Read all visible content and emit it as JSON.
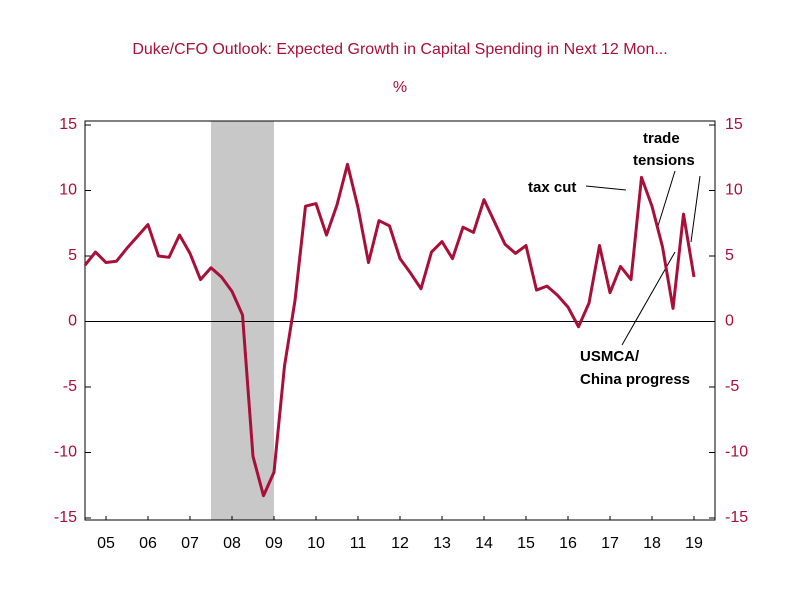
{
  "chart_data": {
    "type": "line",
    "title": "Duke/CFO Outlook: Expected Growth in Capital Spending in Next 12 Mon...",
    "subtitle": "%",
    "x": [
      2005,
      2005.25,
      2005.5,
      2005.75,
      2006,
      2006.25,
      2006.5,
      2006.75,
      2007,
      2007.25,
      2007.5,
      2007.75,
      2008,
      2008.25,
      2008.5,
      2008.75,
      2009,
      2009.25,
      2009.5,
      2009.75,
      2010,
      2010.25,
      2010.5,
      2010.75,
      2011,
      2011.25,
      2011.5,
      2011.75,
      2012,
      2012.25,
      2012.5,
      2012.75,
      2013,
      2013.25,
      2013.5,
      2013.75,
      2014,
      2014.25,
      2014.5,
      2014.75,
      2015,
      2015.25,
      2015.5,
      2015.75,
      2016,
      2016.25,
      2016.5,
      2016.75,
      2017,
      2017.25,
      2017.5,
      2017.75,
      2018,
      2018.25,
      2018.5,
      2018.75,
      2019,
      2019.25,
      2019.5
    ],
    "series": [
      {
        "name": "Expected growth in capital spending",
        "color": "#a8103a",
        "values": [
          4.3,
          5.3,
          4.5,
          4.6,
          5.6,
          6.5,
          7.4,
          5.0,
          4.9,
          6.6,
          5.2,
          3.2,
          4.1,
          3.4,
          2.3,
          0.5,
          -10.3,
          -13.3,
          -11.5,
          -3.4,
          1.6,
          8.8,
          9.0,
          6.6,
          8.9,
          12.0,
          8.7,
          4.5,
          7.7,
          7.3,
          4.8,
          3.7,
          2.5,
          5.3,
          6.1,
          4.8,
          7.2,
          6.8,
          9.3,
          7.6,
          5.9,
          5.2,
          5.8,
          2.4,
          2.7,
          2.0,
          1.1,
          -0.4,
          1.4,
          5.8,
          2.2,
          4.2,
          3.2,
          11.0,
          8.8,
          5.7,
          1.0,
          8.2,
          3.4
        ]
      }
    ],
    "xlim": [
      2005,
      2020
    ],
    "xticks": [
      {
        "value": 2005.5,
        "label": "05"
      },
      {
        "value": 2006.5,
        "label": "06"
      },
      {
        "value": 2007.5,
        "label": "07"
      },
      {
        "value": 2008.5,
        "label": "08"
      },
      {
        "value": 2009.5,
        "label": "09"
      },
      {
        "value": 2010.5,
        "label": "10"
      },
      {
        "value": 2011.5,
        "label": "11"
      },
      {
        "value": 2012.5,
        "label": "12"
      },
      {
        "value": 2013.5,
        "label": "13"
      },
      {
        "value": 2014.5,
        "label": "14"
      },
      {
        "value": 2015.5,
        "label": "15"
      },
      {
        "value": 2016.5,
        "label": "16"
      },
      {
        "value": 2017.5,
        "label": "17"
      },
      {
        "value": 2018.5,
        "label": "18"
      },
      {
        "value": 2019.5,
        "label": "19"
      }
    ],
    "ylim": [
      -15,
      15
    ],
    "yticks": [
      -15,
      -10,
      -5,
      0,
      5,
      10,
      15
    ],
    "y2lim": [
      -15,
      15
    ],
    "y2ticks": [
      -15,
      -10,
      -5,
      0,
      5,
      10,
      15
    ],
    "shading": [
      2008.0,
      2009.5
    ],
    "annotations": [
      "tax cut",
      "trade",
      "tensions",
      "USMCA/",
      "China progress"
    ]
  }
}
